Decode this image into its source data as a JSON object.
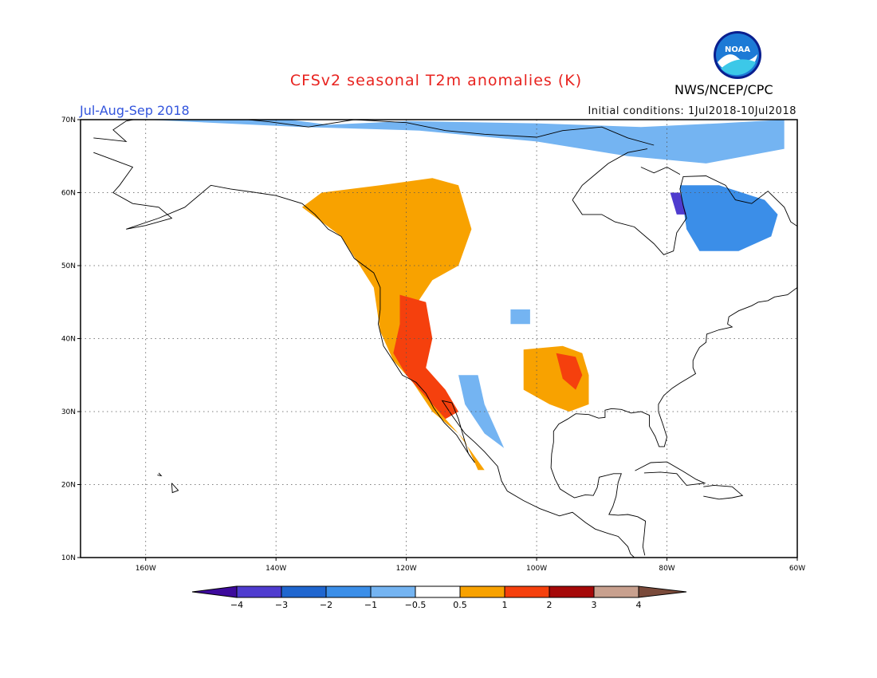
{
  "title": "CFSv2 seasonal T2m anomalies (K)",
  "season": "Jul-Aug-Sep 2018",
  "initial_conditions": "Initial conditions: 1Jul2018-10Jul2018",
  "agency": "NWS/NCEP/CPC",
  "logo": {
    "name": "noaa-logo",
    "text": "NOAA"
  },
  "map": {
    "extent": {
      "lon_min": -170,
      "lon_max": -60,
      "lat_min": 10,
      "lat_max": 70
    },
    "lat_ticks": [
      {
        "value": 70,
        "label": "70N"
      },
      {
        "value": 60,
        "label": "60N"
      },
      {
        "value": 50,
        "label": "50N"
      },
      {
        "value": 40,
        "label": "40N"
      },
      {
        "value": 30,
        "label": "30N"
      },
      {
        "value": 20,
        "label": "20N"
      },
      {
        "value": 10,
        "label": "10N"
      }
    ],
    "lon_ticks": [
      {
        "value": -160,
        "label": "160W"
      },
      {
        "value": -140,
        "label": "140W"
      },
      {
        "value": -120,
        "label": "120W"
      },
      {
        "value": -100,
        "label": "100W"
      },
      {
        "value": -80,
        "label": "80W"
      },
      {
        "value": -60,
        "label": "60W"
      }
    ]
  },
  "colorbar": {
    "labels": [
      "-4",
      "-3",
      "-2",
      "-1",
      "-0.5",
      "0.5",
      "1",
      "2",
      "3",
      "4"
    ],
    "colors": [
      "#3d0a9c",
      "#4f3ccf",
      "#1f66cf",
      "#3b8ee8",
      "#74b4f2",
      "#ffffff",
      "#f8a200",
      "#f5400d",
      "#a50808",
      "#c8a08e",
      "#7a4a3a"
    ]
  },
  "anomaly_regions": [
    {
      "name": "pacific-northwest-canada",
      "level": "1",
      "points": [
        [
          -133,
          60
        ],
        [
          -124,
          61
        ],
        [
          -116,
          62
        ],
        [
          -112,
          61
        ],
        [
          -110,
          55
        ],
        [
          -112,
          50
        ],
        [
          -116,
          48
        ],
        [
          -119,
          44
        ],
        [
          -120,
          38
        ],
        [
          -117,
          33
        ],
        [
          -114,
          29
        ],
        [
          -111,
          26
        ],
        [
          -109,
          22
        ],
        [
          -108,
          22
        ],
        [
          -112,
          27
        ],
        [
          -116,
          30
        ],
        [
          -119,
          34
        ],
        [
          -122,
          37
        ],
        [
          -124,
          41
        ],
        [
          -125,
          47
        ],
        [
          -130,
          54
        ],
        [
          -136,
          58
        ]
      ]
    },
    {
      "name": "western-us-core",
      "level": "2",
      "points": [
        [
          -121,
          46
        ],
        [
          -117,
          45
        ],
        [
          -116,
          40
        ],
        [
          -117,
          36
        ],
        [
          -114,
          33
        ],
        [
          -112,
          30
        ],
        [
          -114,
          29
        ],
        [
          -117,
          32
        ],
        [
          -120,
          35
        ],
        [
          -122,
          38
        ],
        [
          -121,
          42
        ]
      ]
    },
    {
      "name": "southern-plains",
      "level": "1",
      "points": [
        [
          -102,
          38.5
        ],
        [
          -96,
          39
        ],
        [
          -93,
          38
        ],
        [
          -92,
          35
        ],
        [
          -92,
          31
        ],
        [
          -95,
          30
        ],
        [
          -98,
          31
        ],
        [
          -102,
          33
        ]
      ]
    },
    {
      "name": "southern-plains-core",
      "level": "2",
      "points": [
        [
          -97,
          38
        ],
        [
          -94,
          37.5
        ],
        [
          -93,
          35
        ],
        [
          -94,
          33
        ],
        [
          -96,
          34.5
        ]
      ]
    },
    {
      "name": "arctic-canada",
      "level": "-0.5",
      "points": [
        [
          -160,
          70
        ],
        [
          -138,
          70
        ],
        [
          -132,
          69.3
        ],
        [
          -120,
          69.8
        ],
        [
          -100,
          69.5
        ],
        [
          -84,
          69
        ],
        [
          -72,
          69.5
        ],
        [
          -62,
          70
        ],
        [
          -62,
          66
        ],
        [
          -74,
          64
        ],
        [
          -86,
          65
        ],
        [
          -100,
          67
        ],
        [
          -118,
          68.5
        ],
        [
          -136,
          69
        ]
      ]
    },
    {
      "name": "labrador-quebec",
      "level": "-1",
      "points": [
        [
          -78,
          61
        ],
        [
          -72,
          61
        ],
        [
          -65,
          59
        ],
        [
          -63,
          57
        ],
        [
          -64,
          54
        ],
        [
          -69,
          52
        ],
        [
          -75,
          52
        ],
        [
          -77,
          55
        ]
      ]
    },
    {
      "name": "hudson-bay-east",
      "level": "-3",
      "points": [
        [
          -79.5,
          60
        ],
        [
          -78,
          60
        ],
        [
          -77,
          57
        ],
        [
          -78.5,
          57
        ]
      ]
    },
    {
      "name": "southwest-us",
      "level": "-0.5",
      "points": [
        [
          -112,
          35
        ],
        [
          -109,
          35
        ],
        [
          -108,
          31
        ],
        [
          -106,
          27
        ],
        [
          -105,
          25
        ],
        [
          -108,
          27
        ],
        [
          -111,
          31
        ]
      ]
    },
    {
      "name": "northern-plains",
      "level": "-0.5",
      "points": [
        [
          -104,
          44
        ],
        [
          -101,
          44
        ],
        [
          -101,
          42
        ],
        [
          -104,
          42
        ]
      ]
    }
  ]
}
